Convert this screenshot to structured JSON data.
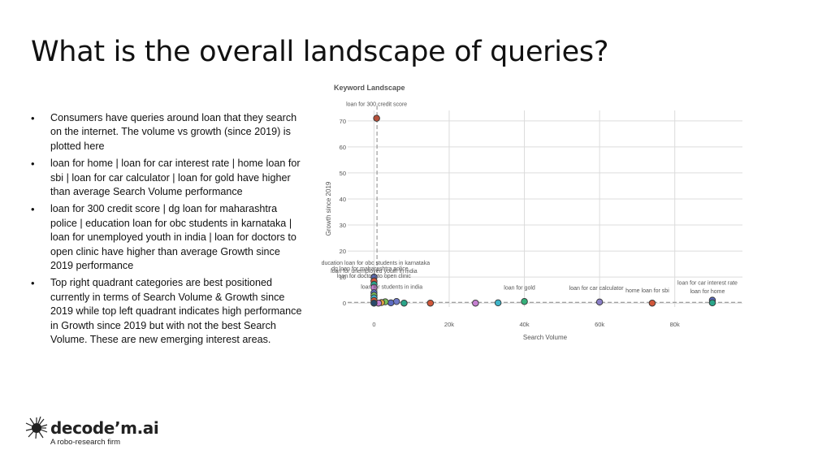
{
  "slide": {
    "title": "What is the overall landscape of queries?",
    "bullets": [
      "Consumers have queries around loan that they search on the internet. The volume vs growth (since 2019) is plotted here",
      "loan for home | loan for car interest rate | home loan for sbi | loan for car calculator | loan for gold have higher than average Search Volume performance",
      "loan for 300 credit score | dg loan for maharashtra police | education loan for obc students in karnataka | loan for unemployed youth in india | loan for doctors to open clinic have higher than average Growth since 2019 performance",
      "Top right quadrant categories are best positioned currently in terms of Search Volume & Growth since 2019 while top left quadrant indicates high performance in Growth since 2019 but with not the best Search Volume. These are new emerging interest areas."
    ]
  },
  "logo": {
    "name": "decode’m.ai",
    "tagline": "A robo-research firm",
    "icon": "spiky-brain-icon"
  },
  "chart_data": {
    "type": "scatter",
    "title": "Keyword Landscape",
    "xlabel": "Search Volume",
    "ylabel": "Growth since 2019",
    "xlim": [
      -7000,
      98000
    ],
    "ylim": [
      -1.5,
      74
    ],
    "x_ticks": [
      0,
      20000,
      40000,
      60000,
      80000
    ],
    "x_tick_labels": [
      "0",
      "20k",
      "40k",
      "60k",
      "80k"
    ],
    "y_ticks": [
      0,
      10,
      20,
      30,
      40,
      50,
      60,
      70
    ],
    "y_tick_labels": [
      "0",
      "10",
      "20",
      "30",
      "40",
      "50",
      "60",
      "70"
    ],
    "grid": true,
    "reference_lines": {
      "x": 800,
      "y": 0.3
    },
    "points": [
      {
        "x": 700,
        "y": 71,
        "color": "#b5503a",
        "label": "loan for 300 credit score"
      },
      {
        "x": 90000,
        "y": 1.1,
        "color": "#5b6bbf",
        "label": "loan for car interest rate"
      },
      {
        "x": 90000,
        "y": 0.1,
        "color": "#2aa58a",
        "label": "loan for home"
      },
      {
        "x": 74000,
        "y": 0,
        "color": "#d0573a",
        "label": "home loan for sbi"
      },
      {
        "x": 60000,
        "y": 0.4,
        "color": "#8a7fc7",
        "label": "loan for car calculator"
      },
      {
        "x": 40000,
        "y": 0.6,
        "color": "#35b07a",
        "label": "loan for gold"
      },
      {
        "x": 33000,
        "y": 0.1,
        "color": "#3fb5c9",
        "label": ""
      },
      {
        "x": 27000,
        "y": 0,
        "color": "#c57fd0",
        "label": ""
      },
      {
        "x": 15000,
        "y": 0,
        "color": "#d0573a",
        "label": ""
      },
      {
        "x": 8000,
        "y": 0,
        "color": "#2aa58a",
        "label": ""
      },
      {
        "x": 6000,
        "y": 0.6,
        "color": "#6f79c6",
        "label": "loan for students in india"
      },
      {
        "x": 4500,
        "y": 0.1,
        "color": "#5b6bbf",
        "label": ""
      },
      {
        "x": 3000,
        "y": 0.5,
        "color": "#7bbf5a",
        "label": ""
      },
      {
        "x": 2000,
        "y": 0.2,
        "color": "#e0a040",
        "label": ""
      },
      {
        "x": 1200,
        "y": 0,
        "color": "#c57fd0",
        "label": ""
      },
      {
        "x": 0,
        "y": 10,
        "color": "#5b6bbf",
        "label": "education loan for obc students in karnataka"
      },
      {
        "x": 0,
        "y": 8.5,
        "color": "#d0573a",
        "label": "dg loan for maharashtra police"
      },
      {
        "x": 0,
        "y": 7.2,
        "color": "#2aa58a",
        "label": "loan for unemployed youth in india"
      },
      {
        "x": 0,
        "y": 6,
        "color": "#c57fd0",
        "label": "loan for doctors to open clinic"
      },
      {
        "x": 0,
        "y": 4,
        "color": "#5b6bbf",
        "label": ""
      },
      {
        "x": 0,
        "y": 3,
        "color": "#7bbf5a",
        "label": ""
      },
      {
        "x": 0,
        "y": 2,
        "color": "#3fb5c9",
        "label": ""
      },
      {
        "x": 0,
        "y": 1,
        "color": "#d0573a",
        "label": ""
      },
      {
        "x": 0,
        "y": 0,
        "color": "#2a4a6a",
        "label": ""
      }
    ]
  }
}
